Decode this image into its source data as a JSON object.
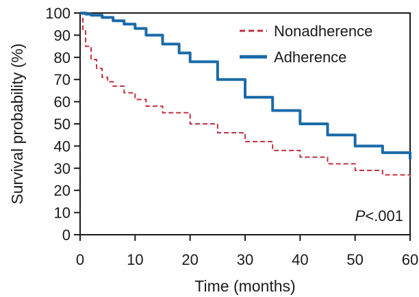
{
  "chart_data": {
    "type": "line",
    "title": "",
    "xlabel": "Time (months)",
    "ylabel": "Survival probability (%)",
    "xlim": [
      0,
      60
    ],
    "ylim": [
      0,
      100
    ],
    "xticks": [
      0,
      10,
      20,
      30,
      40,
      50,
      60
    ],
    "yticks": [
      0,
      10,
      20,
      30,
      40,
      50,
      60,
      70,
      80,
      90,
      100
    ],
    "grid": false,
    "legend_position": "top-right",
    "annotation": {
      "italic": "P",
      "text": "<.001"
    },
    "series": [
      {
        "name": "Nonadherence",
        "color": "#c0303f",
        "style": "dashed",
        "x": [
          0,
          0.5,
          1,
          2,
          3,
          4,
          5,
          6,
          8,
          10,
          12,
          15,
          20,
          25,
          30,
          35,
          40,
          45,
          50,
          55,
          60
        ],
        "y": [
          100,
          92,
          85,
          79,
          75,
          71,
          69,
          67,
          64,
          61,
          58,
          55,
          50,
          46,
          42,
          38,
          35,
          32,
          29,
          27,
          25
        ]
      },
      {
        "name": "Adherence",
        "color": "#1a6aa8",
        "style": "solid",
        "x": [
          0,
          1,
          2,
          4,
          6,
          8,
          10,
          12,
          15,
          18,
          20,
          25,
          30,
          35,
          40,
          45,
          50,
          55,
          60
        ],
        "y": [
          100,
          99.5,
          99,
          98,
          96.5,
          95,
          93,
          90,
          86,
          82,
          78,
          70,
          62,
          56,
          50,
          45,
          40,
          37,
          34
        ]
      }
    ]
  }
}
